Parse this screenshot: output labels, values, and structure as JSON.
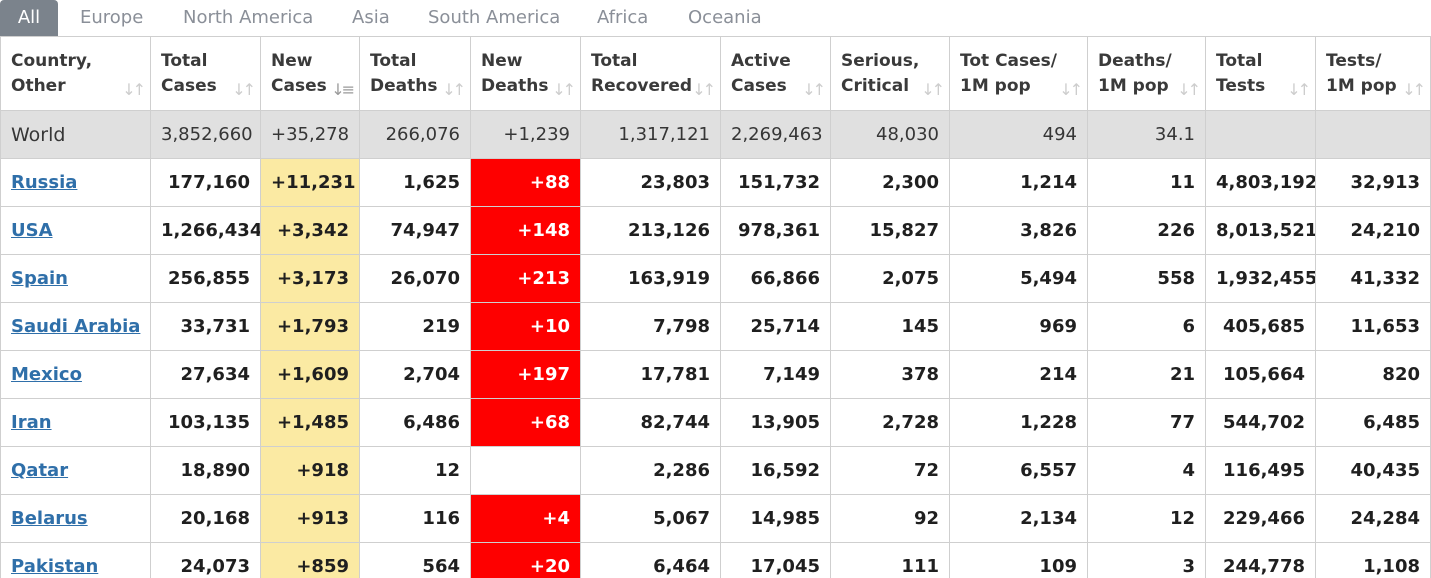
{
  "tabs": [
    "All",
    "Europe",
    "North America",
    "Asia",
    "South America",
    "Africa",
    "Oceania"
  ],
  "active_tab": "All",
  "columns": [
    "Country,\nOther",
    "Total\nCases",
    "New\nCases",
    "Total\nDeaths",
    "New\nDeaths",
    "Total\nRecovered",
    "Active\nCases",
    "Serious,\nCritical",
    "Tot Cases/\n1M pop",
    "Deaths/\n1M pop",
    "Total\nTests",
    "Tests/\n1M pop"
  ],
  "sorted_column": "New\nCases",
  "world": [
    "World",
    "3,852,660",
    "+35,278",
    "266,076",
    "+1,239",
    "1,317,121",
    "2,269,463",
    "48,030",
    "494",
    "34.1",
    "",
    ""
  ],
  "rows": [
    [
      "Russia",
      "177,160",
      "+11,231",
      "1,625",
      "+88",
      "23,803",
      "151,732",
      "2,300",
      "1,214",
      "11",
      "4,803,192",
      "32,913"
    ],
    [
      "USA",
      "1,266,434",
      "+3,342",
      "74,947",
      "+148",
      "213,126",
      "978,361",
      "15,827",
      "3,826",
      "226",
      "8,013,521",
      "24,210"
    ],
    [
      "Spain",
      "256,855",
      "+3,173",
      "26,070",
      "+213",
      "163,919",
      "66,866",
      "2,075",
      "5,494",
      "558",
      "1,932,455",
      "41,332"
    ],
    [
      "Saudi Arabia",
      "33,731",
      "+1,793",
      "219",
      "+10",
      "7,798",
      "25,714",
      "145",
      "969",
      "6",
      "405,685",
      "11,653"
    ],
    [
      "Mexico",
      "27,634",
      "+1,609",
      "2,704",
      "+197",
      "17,781",
      "7,149",
      "378",
      "214",
      "21",
      "105,664",
      "820"
    ],
    [
      "Iran",
      "103,135",
      "+1,485",
      "6,486",
      "+68",
      "82,744",
      "13,905",
      "2,728",
      "1,228",
      "77",
      "544,702",
      "6,485"
    ],
    [
      "Qatar",
      "18,890",
      "+918",
      "12",
      "",
      "2,286",
      "16,592",
      "72",
      "6,557",
      "4",
      "116,495",
      "40,435"
    ],
    [
      "Belarus",
      "20,168",
      "+913",
      "116",
      "+4",
      "5,067",
      "14,985",
      "92",
      "2,134",
      "12",
      "229,466",
      "24,284"
    ],
    [
      "Pakistan",
      "24,073",
      "+859",
      "564",
      "+20",
      "6,464",
      "17,045",
      "111",
      "109",
      "3",
      "244,778",
      "1,108"
    ]
  ],
  "colors": {
    "active_tab_bg": "#7b838c",
    "world_row_bg": "#e0e0e0",
    "new_cases_bg": "#fbeaa3",
    "new_deaths_bg": "#fe0000",
    "link": "#2f6fa9"
  },
  "icons": {
    "sort": "sort-arrows-icon",
    "sort_active": "sort-desc-icon"
  }
}
